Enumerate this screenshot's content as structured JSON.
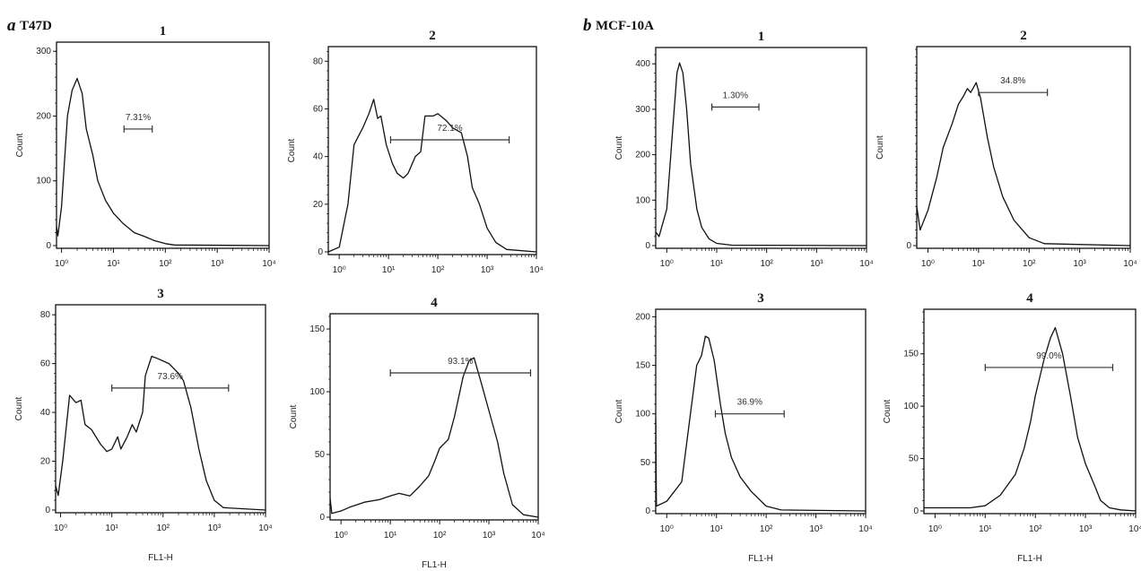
{
  "groups": [
    {
      "letter": "a",
      "name": "T47D"
    },
    {
      "letter": "b",
      "name": "MCF-10A"
    }
  ],
  "colors": {
    "line": "#111111",
    "gate": "#333333",
    "background": "#ffffff"
  },
  "chart_data": [
    {
      "type": "line",
      "group": "a",
      "title": "1",
      "xlabel": "",
      "ylabel": "Count",
      "xscale": "log",
      "xlim": [
        0.8,
        10000
      ],
      "ylim": [
        0,
        310
      ],
      "y_ticks": [
        0,
        100,
        200,
        300
      ],
      "y_tick_labels": [
        "0",
        "100",
        "200",
        "300"
      ],
      "x_ticks": [
        1,
        10,
        100,
        1000,
        10000
      ],
      "x_tick_labels": [
        "10⁰",
        "10¹",
        "10²",
        "10³",
        "10⁴"
      ],
      "gate": {
        "label": "7.31%",
        "x_start": 16,
        "x_end": 56,
        "y": 180
      },
      "x": [
        0.8,
        0.85,
        1,
        1.3,
        1.6,
        2,
        2.5,
        3,
        4,
        5,
        7,
        10,
        15,
        25,
        40,
        60,
        100,
        150,
        10000
      ],
      "values": [
        30,
        15,
        60,
        200,
        240,
        258,
        235,
        180,
        140,
        100,
        70,
        50,
        35,
        20,
        14,
        8,
        3,
        1,
        0
      ]
    },
    {
      "type": "line",
      "group": "a",
      "title": "2",
      "xlabel": "",
      "ylabel": "Count",
      "xscale": "log",
      "xlim": [
        0.6,
        10000
      ],
      "ylim": [
        0,
        85
      ],
      "y_ticks": [
        0,
        20,
        40,
        60,
        80
      ],
      "y_tick_labels": [
        "0",
        "20",
        "40",
        "60",
        "80"
      ],
      "x_ticks": [
        1,
        10,
        100,
        1000,
        10000
      ],
      "x_tick_labels": [
        "10⁰",
        "10¹",
        "10²",
        "10³",
        "10⁴"
      ],
      "gate": {
        "label": "72.1%",
        "x_start": 11,
        "x_end": 2800,
        "y": 47
      },
      "x": [
        0.6,
        1,
        1.5,
        2,
        3,
        4,
        5,
        6,
        7,
        9,
        12,
        15,
        20,
        25,
        35,
        45,
        55,
        80,
        100,
        150,
        200,
        300,
        400,
        500,
        700,
        1000,
        1500,
        2500,
        10000
      ],
      "values": [
        0,
        2,
        20,
        45,
        52,
        58,
        64,
        56,
        57,
        45,
        37,
        33,
        31,
        33,
        40,
        42,
        57,
        57,
        58,
        55,
        52,
        50,
        40,
        27,
        20,
        10,
        4,
        1,
        0
      ]
    },
    {
      "type": "line",
      "group": "a",
      "title": "3",
      "xlabel": "FL1-H",
      "ylabel": "Count",
      "xscale": "log",
      "xlim": [
        0.8,
        10000
      ],
      "ylim": [
        0,
        83
      ],
      "y_ticks": [
        0,
        20,
        40,
        60,
        80
      ],
      "y_tick_labels": [
        "0",
        "20",
        "40",
        "60",
        "80"
      ],
      "x_ticks": [
        1,
        10,
        100,
        1000,
        10000
      ],
      "x_tick_labels": [
        "10⁰",
        "10¹",
        "10²",
        "10³",
        "10⁴"
      ],
      "gate": {
        "label": "73.6%",
        "x_start": 10,
        "x_end": 1900,
        "y": 50
      },
      "x": [
        0.8,
        0.9,
        1.1,
        1.5,
        2,
        2.5,
        3,
        4,
        6,
        8,
        10,
        13,
        15,
        20,
        25,
        30,
        40,
        45,
        60,
        80,
        130,
        200,
        250,
        350,
        500,
        700,
        1000,
        1500,
        10000
      ],
      "values": [
        10,
        6,
        20,
        47,
        44,
        45,
        35,
        33,
        27,
        24,
        25,
        30,
        25,
        30,
        35,
        32,
        40,
        55,
        63,
        62,
        60,
        56,
        53,
        42,
        25,
        12,
        4,
        1,
        0
      ]
    },
    {
      "type": "line",
      "group": "a",
      "title": "4",
      "xlabel": "FL1-H",
      "ylabel": "Count",
      "xscale": "log",
      "xlim": [
        0.6,
        10000
      ],
      "ylim": [
        0,
        160
      ],
      "y_ticks": [
        0,
        50,
        100,
        150
      ],
      "y_tick_labels": [
        "0",
        "50",
        "100",
        "150"
      ],
      "x_ticks": [
        1,
        10,
        100,
        1000,
        10000
      ],
      "x_tick_labels": [
        "10⁰",
        "10¹",
        "10²",
        "10³",
        "10⁴"
      ],
      "gate": {
        "label": "93.1%",
        "x_start": 10,
        "x_end": 7000,
        "y": 115
      },
      "x": [
        0.6,
        0.65,
        1,
        1.5,
        3,
        6,
        10,
        15,
        25,
        40,
        60,
        80,
        100,
        150,
        200,
        300,
        400,
        500,
        700,
        1000,
        1500,
        2000,
        3000,
        5000,
        10000
      ],
      "values": [
        15,
        3,
        5,
        8,
        12,
        14,
        17,
        19,
        17,
        25,
        33,
        45,
        55,
        62,
        80,
        112,
        125,
        127,
        107,
        85,
        60,
        35,
        10,
        2,
        0
      ]
    },
    {
      "type": "line",
      "group": "b",
      "title": "1",
      "xlabel": "",
      "ylabel": "Count",
      "xscale": "log",
      "xlim": [
        0.6,
        10000
      ],
      "ylim": [
        0,
        430
      ],
      "y_ticks": [
        0,
        100,
        200,
        300,
        400
      ],
      "y_tick_labels": [
        "0",
        "100",
        "200",
        "300",
        "400"
      ],
      "x_ticks": [
        1,
        10,
        100,
        1000,
        10000
      ],
      "x_tick_labels": [
        "10⁰",
        "10¹",
        "10²",
        "10³",
        "10⁴"
      ],
      "gate": {
        "label": "1.30%",
        "x_start": 8,
        "x_end": 70,
        "y": 305
      },
      "x": [
        0.6,
        0.7,
        1,
        1.3,
        1.6,
        1.8,
        2.1,
        2.5,
        3,
        4,
        5,
        7,
        10,
        20,
        10000
      ],
      "values": [
        30,
        20,
        80,
        250,
        380,
        402,
        380,
        300,
        180,
        80,
        40,
        15,
        5,
        1,
        0
      ]
    },
    {
      "type": "line",
      "group": "b",
      "title": "2",
      "xlabel": "",
      "ylabel": "Count",
      "xscale": "log",
      "xlim": [
        0.6,
        10000
      ],
      "ylim": [
        0,
        100
      ],
      "y_ticks": [
        0
      ],
      "y_tick_labels": [
        "0"
      ],
      "x_ticks": [
        1,
        10,
        100,
        1000,
        10000
      ],
      "x_tick_labels": [
        "10⁰",
        "10¹",
        "10²",
        "10³",
        "10⁴"
      ],
      "gate": {
        "label": "34.8%",
        "x_start": 10,
        "x_end": 230,
        "y": 78
      },
      "x": [
        0.6,
        0.7,
        1,
        1.5,
        2,
        3,
        4,
        5,
        6,
        7,
        9,
        11,
        15,
        20,
        30,
        50,
        100,
        200,
        10000
      ],
      "values": [
        20,
        8,
        18,
        35,
        50,
        62,
        72,
        76,
        80,
        78,
        83,
        75,
        55,
        40,
        25,
        13,
        4,
        1,
        0
      ]
    },
    {
      "type": "line",
      "group": "b",
      "title": "3",
      "xlabel": "FL1-H",
      "ylabel": "Count",
      "xscale": "log",
      "xlim": [
        0.6,
        10000
      ],
      "ylim": [
        0,
        205
      ],
      "y_ticks": [
        0,
        50,
        100,
        150,
        200
      ],
      "y_tick_labels": [
        "0",
        "50",
        "100",
        "150",
        "200"
      ],
      "x_ticks": [
        1,
        10,
        100,
        1000,
        10000
      ],
      "x_tick_labels": [
        "10⁰",
        "10¹",
        "10²",
        "10³",
        "10⁴"
      ],
      "gate": {
        "label": "36.9%",
        "x_start": 9.5,
        "x_end": 230,
        "y": 100
      },
      "x": [
        0.6,
        0.62,
        1,
        2,
        3,
        4,
        5,
        6,
        7,
        9,
        12,
        15,
        20,
        30,
        50,
        100,
        200,
        10000
      ],
      "values": [
        95,
        5,
        10,
        30,
        100,
        150,
        160,
        180,
        178,
        155,
        110,
        80,
        55,
        35,
        20,
        5,
        1,
        0
      ]
    },
    {
      "type": "line",
      "group": "b",
      "title": "4",
      "xlabel": "FL1-H",
      "ylabel": "Count",
      "xscale": "log",
      "xlim": [
        0.6,
        10000
      ],
      "ylim": [
        0,
        190
      ],
      "y_ticks": [
        0,
        50,
        100,
        150
      ],
      "y_tick_labels": [
        "0",
        "50",
        "100",
        "150"
      ],
      "x_ticks": [
        1,
        10,
        100,
        1000,
        10000
      ],
      "x_tick_labels": [
        "10⁰",
        "10¹",
        "10²",
        "10³",
        "10⁴"
      ],
      "gate": {
        "label": "99.0%",
        "x_start": 10,
        "x_end": 3500,
        "y": 137
      },
      "x": [
        0.6,
        2,
        5,
        10,
        20,
        40,
        60,
        80,
        100,
        150,
        200,
        250,
        350,
        500,
        700,
        1000,
        1500,
        2000,
        3000,
        5000,
        10000
      ],
      "values": [
        3,
        3,
        3,
        5,
        15,
        35,
        60,
        85,
        110,
        145,
        165,
        175,
        150,
        110,
        70,
        45,
        25,
        10,
        3,
        1,
        0
      ]
    }
  ]
}
